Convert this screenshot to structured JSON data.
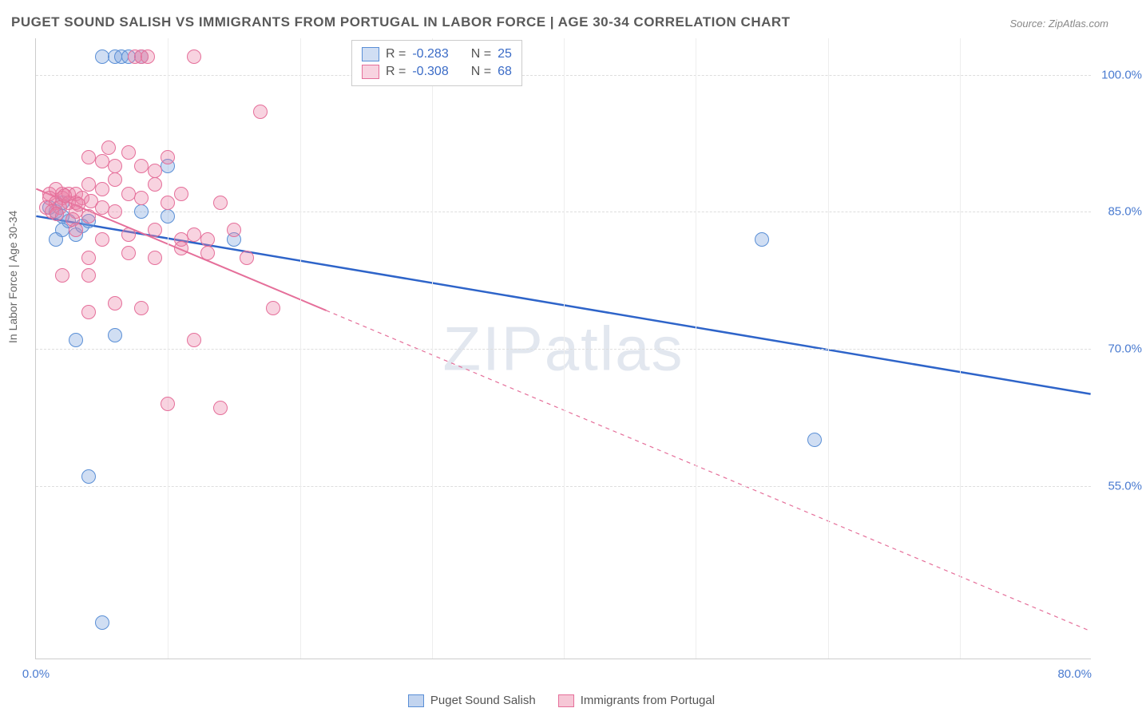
{
  "title": "PUGET SOUND SALISH VS IMMIGRANTS FROM PORTUGAL IN LABOR FORCE | AGE 30-34 CORRELATION CHART",
  "source": "Source: ZipAtlas.com",
  "y_axis_label": "In Labor Force | Age 30-34",
  "watermark": "ZIPatlas",
  "chart": {
    "type": "scatter",
    "xlim": [
      0,
      80
    ],
    "ylim": [
      36,
      104
    ],
    "x_ticks": [
      {
        "v": 0,
        "label": "0.0%"
      },
      {
        "v": 80,
        "label": "80.0%"
      }
    ],
    "y_ticks": [
      {
        "v": 55,
        "label": "55.0%"
      },
      {
        "v": 70,
        "label": "70.0%"
      },
      {
        "v": 85,
        "label": "85.0%"
      },
      {
        "v": 100,
        "label": "100.0%"
      }
    ],
    "x_gridlines": [
      10,
      20,
      30,
      40,
      50,
      60,
      70
    ],
    "background_color": "#ffffff",
    "grid_color": "#dddddd",
    "axis_color": "#cccccc",
    "tick_font_color": "#4a7bd0",
    "tick_fontsize": 15,
    "title_fontsize": 17,
    "title_color": "#5a5a5a",
    "marker_radius": 9,
    "marker_stroke_width": 1.5,
    "series": [
      {
        "name": "Puget Sound Salish",
        "color_fill": "rgba(120,160,220,0.35)",
        "color_stroke": "#5a8fd6",
        "R": "-0.283",
        "N": "25",
        "trend": {
          "x1": 0,
          "y1": 84.5,
          "x2": 80,
          "y2": 65,
          "stroke": "#2e64c9",
          "width": 2.5,
          "dash": "none",
          "solid_until_x": 80
        },
        "points": [
          [
            5,
            102
          ],
          [
            6,
            102
          ],
          [
            6.5,
            102
          ],
          [
            7,
            102
          ],
          [
            8,
            102
          ],
          [
            1,
            85.5
          ],
          [
            1.5,
            85
          ],
          [
            2,
            86
          ],
          [
            2.5,
            84
          ],
          [
            2,
            83
          ],
          [
            3,
            82.5
          ],
          [
            3.5,
            83.5
          ],
          [
            8,
            85
          ],
          [
            10,
            84.5
          ],
          [
            15,
            82
          ],
          [
            3,
            71
          ],
          [
            6,
            71.5
          ],
          [
            4,
            56
          ],
          [
            5,
            40
          ],
          [
            55,
            82
          ],
          [
            59,
            60
          ],
          [
            10,
            90
          ],
          [
            2,
            84.5
          ],
          [
            4,
            84
          ],
          [
            1.5,
            82
          ]
        ]
      },
      {
        "name": "Immigrants from Portugal",
        "color_fill": "rgba(235,130,165,0.35)",
        "color_stroke": "#e56f9a",
        "R": "-0.308",
        "N": "68",
        "trend": {
          "x1": 0,
          "y1": 87.5,
          "x2": 80,
          "y2": 39,
          "stroke": "#e56f9a",
          "width": 2,
          "dash": "5,5",
          "solid_until_x": 22
        },
        "points": [
          [
            7.5,
            102
          ],
          [
            8,
            102
          ],
          [
            8.5,
            102
          ],
          [
            12,
            102
          ],
          [
            1,
            87
          ],
          [
            1.5,
            87.5
          ],
          [
            1,
            86.5
          ],
          [
            2,
            87
          ],
          [
            2,
            86.5
          ],
          [
            1.5,
            86
          ],
          [
            2.5,
            87
          ],
          [
            2.5,
            86
          ],
          [
            3,
            87
          ],
          [
            3,
            86
          ],
          [
            3.5,
            86.5
          ],
          [
            0.8,
            85.5
          ],
          [
            1.2,
            85
          ],
          [
            1.8,
            85.5
          ],
          [
            4,
            91
          ],
          [
            5,
            90.5
          ],
          [
            5.5,
            92
          ],
          [
            6,
            90
          ],
          [
            7,
            91.5
          ],
          [
            8,
            90
          ],
          [
            9,
            89.5
          ],
          [
            10,
            91
          ],
          [
            4,
            88
          ],
          [
            5,
            87.5
          ],
          [
            6,
            88.5
          ],
          [
            7,
            87
          ],
          [
            8,
            86.5
          ],
          [
            9,
            88
          ],
          [
            10,
            86
          ],
          [
            11,
            87
          ],
          [
            3,
            83
          ],
          [
            5,
            82
          ],
          [
            7,
            82.5
          ],
          [
            9,
            83
          ],
          [
            11,
            82
          ],
          [
            12,
            82.5
          ],
          [
            13,
            82
          ],
          [
            4,
            80
          ],
          [
            7,
            80.5
          ],
          [
            9,
            80
          ],
          [
            11,
            81
          ],
          [
            13,
            80.5
          ],
          [
            2,
            78
          ],
          [
            4,
            78
          ],
          [
            6,
            75
          ],
          [
            8,
            74.5
          ],
          [
            4,
            74
          ],
          [
            17,
            96
          ],
          [
            14,
            86
          ],
          [
            15,
            83
          ],
          [
            16,
            80
          ],
          [
            18,
            74.5
          ],
          [
            12,
            71
          ],
          [
            10,
            64
          ],
          [
            14,
            63.5
          ],
          [
            3,
            85
          ],
          [
            5,
            85.5
          ],
          [
            4,
            84.5
          ],
          [
            6,
            85
          ],
          [
            2.2,
            86.8
          ],
          [
            3.2,
            85.8
          ],
          [
            4.2,
            86.2
          ],
          [
            1.6,
            84.8
          ],
          [
            2.8,
            84.2
          ]
        ]
      }
    ]
  },
  "legend_top": {
    "r_label": "R =",
    "n_label": "N ="
  },
  "legend_bottom": [
    {
      "label": "Puget Sound Salish",
      "fill": "rgba(120,160,220,0.45)",
      "stroke": "#5a8fd6"
    },
    {
      "label": "Immigrants from Portugal",
      "fill": "rgba(235,130,165,0.45)",
      "stroke": "#e56f9a"
    }
  ]
}
